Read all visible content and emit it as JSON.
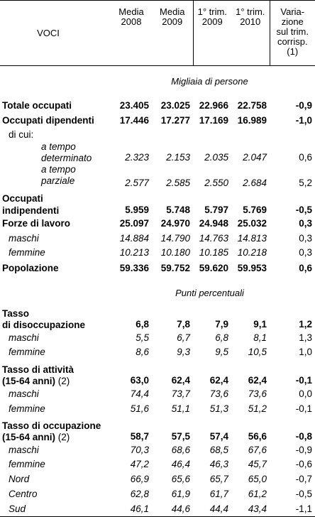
{
  "header": {
    "voci": "VOCI",
    "col1": [
      "Media",
      "2008"
    ],
    "col2": [
      "Media",
      "2009"
    ],
    "col3": [
      "1° trim.",
      "2009"
    ],
    "col4": [
      "1° trim.",
      "2010"
    ],
    "col5": [
      "Varia-",
      "zione",
      "sul trim.",
      "corrisp.",
      "(1)"
    ]
  },
  "section1": "Migliaia di persone",
  "section2": "Punti percentuali",
  "rows": {
    "totale_occupati": {
      "label": "Totale occupati",
      "v": [
        "23.405",
        "23.025",
        "22.966",
        "22.758",
        "-0,9"
      ]
    },
    "occupati_dipendenti": {
      "label": "Occupati dipendenti",
      "v": [
        "17.446",
        "17.277",
        "17.169",
        "16.989",
        "-1,0"
      ]
    },
    "di_cui": "di cui:",
    "tempo_det": {
      "label1": "a tempo",
      "label2": "determinato",
      "v": [
        "2.323",
        "2.153",
        "2.035",
        "2.047",
        "0,6"
      ]
    },
    "tempo_parz": {
      "label1": "a tempo",
      "label2": "parziale",
      "v": [
        "2.577",
        "2.585",
        "2.550",
        "2.684",
        "5,2"
      ]
    },
    "indipendenti": {
      "label1": "Occupati",
      "label2": "indipendenti",
      "v": [
        "5.959",
        "5.748",
        "5.797",
        "5.769",
        "-0,5"
      ]
    },
    "forze_lavoro": {
      "label": "Forze di lavoro",
      "v": [
        "25.097",
        "24.970",
        "24.948",
        "25.032",
        "0,3"
      ]
    },
    "fl_maschi": {
      "label": "maschi",
      "v": [
        "14.884",
        "14.790",
        "14.763",
        "14.813",
        "0,3"
      ]
    },
    "fl_femmine": {
      "label": "femmine",
      "v": [
        "10.213",
        "10.180",
        "10.185",
        "10.218",
        "0,3"
      ]
    },
    "popolazione": {
      "label": "Popolazione",
      "v": [
        "59.336",
        "59.752",
        "59.620",
        "59.953",
        "0,6"
      ]
    },
    "disocc": {
      "label1": "Tasso",
      "label2": "di disoccupazione",
      "v": [
        "6,8",
        "7,8",
        "7,9",
        "9,1",
        "1,2"
      ]
    },
    "dis_maschi": {
      "label": "maschi",
      "v": [
        "5,5",
        "6,7",
        "6,8",
        "8,1",
        "1,3"
      ]
    },
    "dis_femmine": {
      "label": "femmine",
      "v": [
        "8,6",
        "9,3",
        "9,5",
        "10,5",
        "1,0"
      ]
    },
    "attivita": {
      "label1": "Tasso di attività",
      "label2": "(15-64 anni)",
      "note": "(2)",
      "v": [
        "63,0",
        "62,4",
        "62,4",
        "62,4",
        "-0,1"
      ]
    },
    "att_maschi": {
      "label": "maschi",
      "v": [
        "74,4",
        "73,7",
        "73,6",
        "73,6",
        "0,0"
      ]
    },
    "att_femmine": {
      "label": "femmine",
      "v": [
        "51,6",
        "51,1",
        "51,3",
        "51,2",
        "-0,1"
      ]
    },
    "occupazione": {
      "label1": "Tasso di occupazione",
      "label2": "(15-64 anni)",
      "note": "(2)",
      "v": [
        "58,7",
        "57,5",
        "57,4",
        "56,6",
        "-0,8"
      ]
    },
    "occ_maschi": {
      "label": "maschi",
      "v": [
        "70,3",
        "68,6",
        "68,5",
        "67,6",
        "-0,9"
      ]
    },
    "occ_femmine": {
      "label": "femmine",
      "v": [
        "47,2",
        "46,4",
        "46,3",
        "45,7",
        "-0,6"
      ]
    },
    "occ_nord": {
      "label": "Nord",
      "v": [
        "66,9",
        "65,6",
        "65,7",
        "65,0",
        "-0,7"
      ]
    },
    "occ_centro": {
      "label": "Centro",
      "v": [
        "62,8",
        "61,9",
        "61,7",
        "61,2",
        "-0,5"
      ]
    },
    "occ_sud": {
      "label": "Sud",
      "v": [
        "46,1",
        "44,6",
        "44,4",
        "43,4",
        "-1,1"
      ]
    }
  }
}
